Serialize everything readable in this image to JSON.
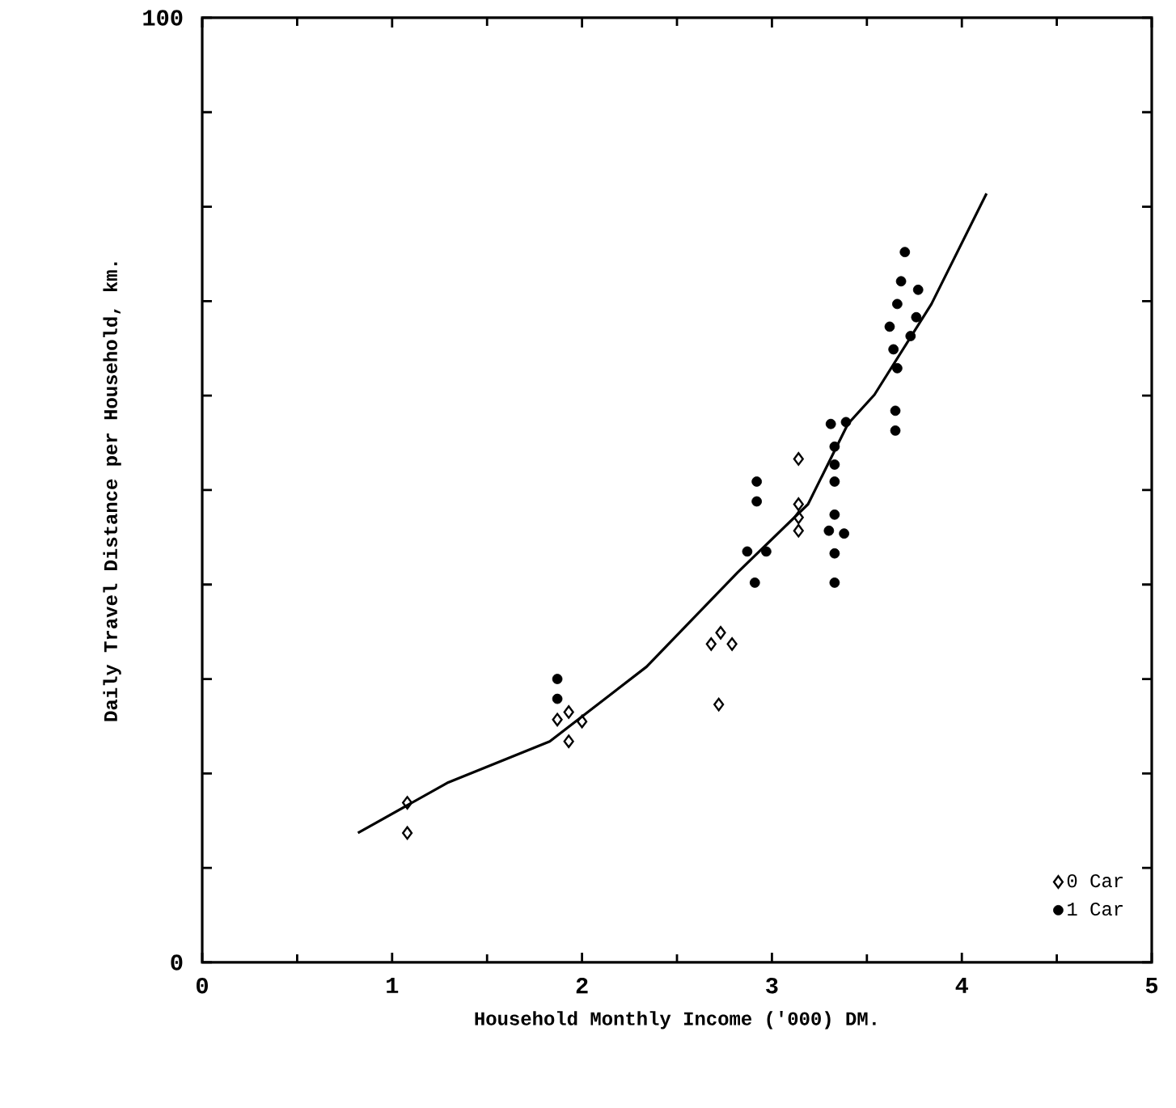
{
  "chart_data": {
    "type": "scatter",
    "xlabel": "Household Monthly Income ('000) DM.",
    "ylabel": "Daily Travel Distance per Household, km.",
    "xlim": [
      0,
      5
    ],
    "ylim": [
      0,
      100
    ],
    "xticks": [
      0,
      1,
      2,
      3,
      4,
      5
    ],
    "yticks": [
      0,
      {
        "value": 10,
        "label": null
      },
      {
        "value": 20,
        "label": null
      },
      {
        "value": 30,
        "label": null
      },
      {
        "value": 40,
        "label": null
      },
      {
        "value": 50,
        "label": null
      },
      {
        "value": 60,
        "label": null
      },
      {
        "value": 70,
        "label": null
      },
      {
        "value": 80,
        "label": null
      },
      {
        "value": 90,
        "label": null
      },
      100
    ],
    "grid": false,
    "legend": "bottom right",
    "series": [
      {
        "name": "0 Car",
        "color": "#000000",
        "marker": "diamond",
        "x": [
          1.08,
          1.08,
          1.87,
          1.93,
          2.0,
          1.93,
          2.68,
          2.73,
          2.79,
          2.72,
          3.14,
          3.14,
          3.14,
          3.14
        ],
        "values": [
          16.9,
          13.7,
          25.7,
          26.5,
          25.5,
          23.4,
          33.7,
          34.9,
          33.7,
          27.3,
          53.3,
          48.5,
          47.1,
          45.7
        ]
      },
      {
        "name": "1 Car",
        "color": "#000000",
        "marker": "circle",
        "x": [
          1.87,
          1.87,
          2.87,
          2.97,
          2.91,
          2.92,
          2.92,
          3.31,
          3.39,
          3.33,
          3.33,
          3.33,
          3.33,
          3.3,
          3.38,
          3.33,
          3.33,
          3.7,
          3.68,
          3.77,
          3.66,
          3.76,
          3.62,
          3.73,
          3.64,
          3.66,
          3.65,
          3.65
        ],
        "values": [
          30.0,
          27.9,
          43.5,
          43.5,
          40.2,
          50.9,
          48.8,
          57.0,
          57.2,
          54.6,
          52.7,
          50.9,
          47.4,
          45.7,
          45.4,
          43.3,
          40.2,
          75.2,
          72.1,
          71.2,
          69.7,
          68.3,
          67.3,
          66.3,
          64.9,
          62.9,
          58.4,
          56.3
        ]
      },
      {
        "type": "line",
        "color": "#000000",
        "marker": "none",
        "line_style": "solid",
        "x": [
          0.82,
          1.29,
          1.83,
          2.34,
          2.82,
          3.19,
          3.4,
          3.54,
          3.84,
          4.13
        ],
        "values": [
          13.7,
          19.0,
          23.4,
          31.3,
          41.3,
          48.5,
          57.0,
          60.1,
          69.7,
          81.4
        ]
      }
    ]
  }
}
